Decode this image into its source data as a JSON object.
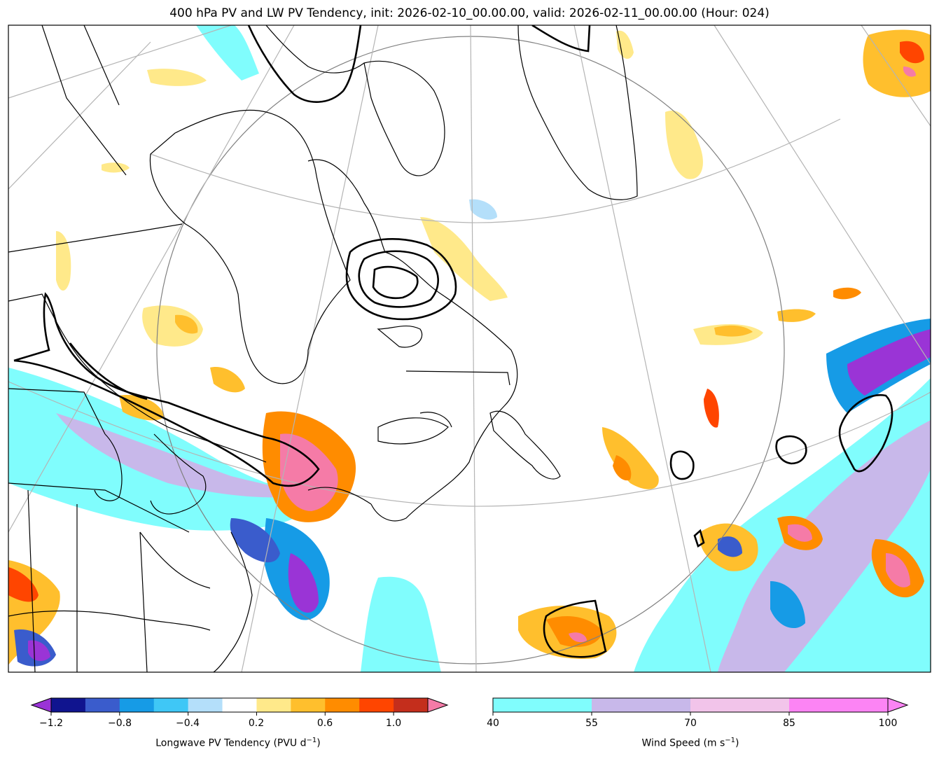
{
  "title": "400 hPa PV and LW PV Tendency, init: 2026-02-10_00.00.00, valid: 2026-02-11_00.00.00 (Hour: 024)",
  "pv_colorbar": {
    "label": "Longwave PV Tendency (PVU d",
    "label_sup": "−1",
    "label_end": ")",
    "boundaries": [
      -1.2,
      -1.0,
      -0.8,
      -0.6,
      -0.4,
      -0.2,
      0.2,
      0.4,
      0.6,
      0.8,
      1.0,
      1.2
    ],
    "colors": [
      "#10148f",
      "#3a5ccc",
      "#169be6",
      "#3fc7f6",
      "#b4dffa",
      "#ffffff",
      "#ffe98a",
      "#ffbf2d",
      "#ff8c00",
      "#ff4500",
      "#c42e1c"
    ],
    "under_color": "#9a34d6",
    "over_color": "#f57ba7",
    "tick_labels": [
      "−1.2",
      "−0.8",
      "−0.4",
      "0.2",
      "0.6",
      "1.0"
    ]
  },
  "wind_colorbar": {
    "label": "Wind Speed (m s",
    "label_sup": "−1",
    "label_end": ")",
    "boundaries": [
      40,
      55,
      70,
      85,
      100
    ],
    "colors": [
      "#80fdfd",
      "#c8b8ea",
      "#f2c4ea",
      "#fc84f4"
    ],
    "over_color": "#fc84f4",
    "tick_labels": [
      "40",
      "55",
      "70",
      "85",
      "100"
    ]
  },
  "colors": {
    "land_line": "#000000",
    "graticule": "#b4b4b4",
    "frame": "#000000"
  }
}
